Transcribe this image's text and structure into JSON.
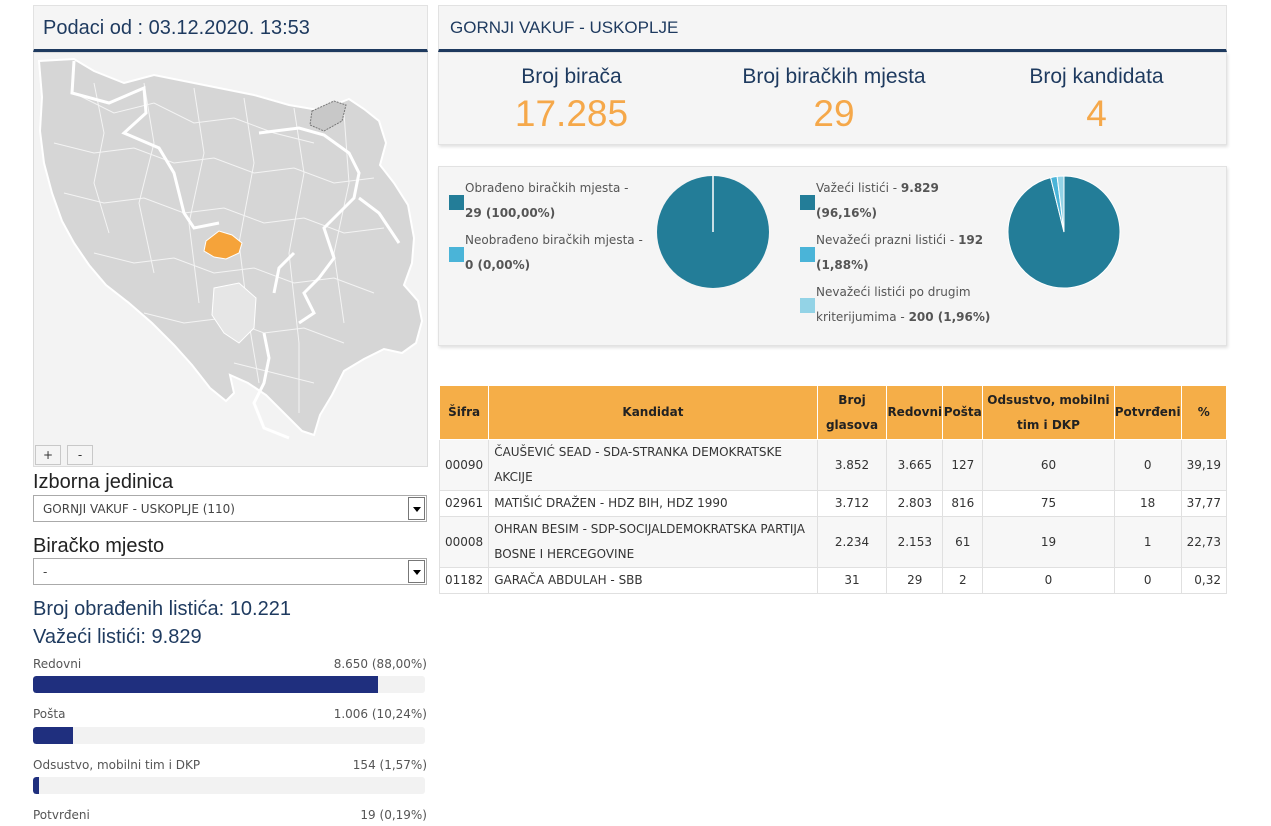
{
  "left": {
    "header": "Podaci od : 03.12.2020. 13:53",
    "zoom_in": "+",
    "zoom_out": "-",
    "izborna_label": "Izborna jedinica",
    "izborna_value": "GORNJI VAKUF - USKOPLJE (110)",
    "mjesto_label": "Biračko mjesto",
    "mjesto_value": "-",
    "processed": "Broj obrađenih listića: 10.221",
    "valid": "Važeći listići: 9.829",
    "bars": [
      {
        "label": "Redovni",
        "value": "8.650 (88,00%)",
        "pct": 88.0
      },
      {
        "label": "Pošta",
        "value": "1.006 (10,24%)",
        "pct": 10.24
      },
      {
        "label": "Odsustvo, mobilni tim i DKP",
        "value": "154 (1,57%)",
        "pct": 1.57
      },
      {
        "label": "Potvrđeni",
        "value": "19 (0,19%)",
        "pct": 0.19
      }
    ]
  },
  "right": {
    "header": "GORNJI VAKUF - USKOPLJE",
    "summary": [
      {
        "title": "Broj birača",
        "value": "17.285"
      },
      {
        "title": "Broj biračkih mjesta",
        "value": "29"
      },
      {
        "title": "Broj kandidata",
        "value": "4"
      }
    ],
    "pie1": {
      "items": [
        {
          "text": "Obrađeno biračkih mjesta -",
          "bold": "29 (100,00%)",
          "color": "#237d98",
          "value": 100.0
        },
        {
          "text": "Neobrađeno biračkih mjesta -",
          "bold": "0 (0,00%)",
          "color": "#4ab4d8",
          "value": 0.0
        }
      ]
    },
    "pie2": {
      "items": [
        {
          "text": "Važeći listići -",
          "bold": "9.829",
          "bold2": "(96,16%)",
          "color": "#237d98",
          "value": 96.16
        },
        {
          "text": "Nevažeći prazni listići -",
          "bold": "192",
          "bold2": "(1,88%)",
          "color": "#4ab4d8",
          "value": 1.88
        },
        {
          "text": "Nevažeći listići po drugim",
          "text2": "kriterijumima -",
          "bold": "200 (1,96%)",
          "color": "#93d3e6",
          "value": 1.96
        }
      ]
    },
    "table": {
      "headers": [
        "Šifra",
        "Kandidat",
        "Broj glasova",
        "Redovni",
        "Pošta",
        "Odsustvo, mobilni tim i DKP",
        "Potvrđeni",
        "%"
      ],
      "rows": [
        {
          "sifra": "00090",
          "kandidat": "ČAUŠEVIĆ SEAD - SDA-STRANKA DEMOKRATSKE AKCIJE",
          "glasova": "3.852",
          "redovni": "3.665",
          "posta": "127",
          "odsustvo": "60",
          "potvrdjeni": "0",
          "pct": "39,19"
        },
        {
          "sifra": "02961",
          "kandidat": "MATIŠIĆ DRAŽEN - HDZ BIH, HDZ 1990",
          "glasova": "3.712",
          "redovni": "2.803",
          "posta": "816",
          "odsustvo": "75",
          "potvrdjeni": "18",
          "pct": "37,77"
        },
        {
          "sifra": "00008",
          "kandidat": "OHRAN BESIM - SDP-SOCIJALDEMOKRATSKA PARTIJA BOSNE I HERCEGOVINE",
          "glasova": "2.234",
          "redovni": "2.153",
          "posta": "61",
          "odsustvo": "19",
          "potvrdjeni": "1",
          "pct": "22,73"
        },
        {
          "sifra": "01182",
          "kandidat": "GARAČA ABDULAH - SBB",
          "glasova": "31",
          "redovni": "29",
          "posta": "2",
          "odsustvo": "0",
          "potvrdjeni": "0",
          "pct": "0,32"
        }
      ]
    }
  },
  "colors": {
    "navy": "#1e3a5f",
    "orange": "#f5a84a",
    "bar": "#1f2f7e",
    "highlight": "#f5a33a"
  }
}
